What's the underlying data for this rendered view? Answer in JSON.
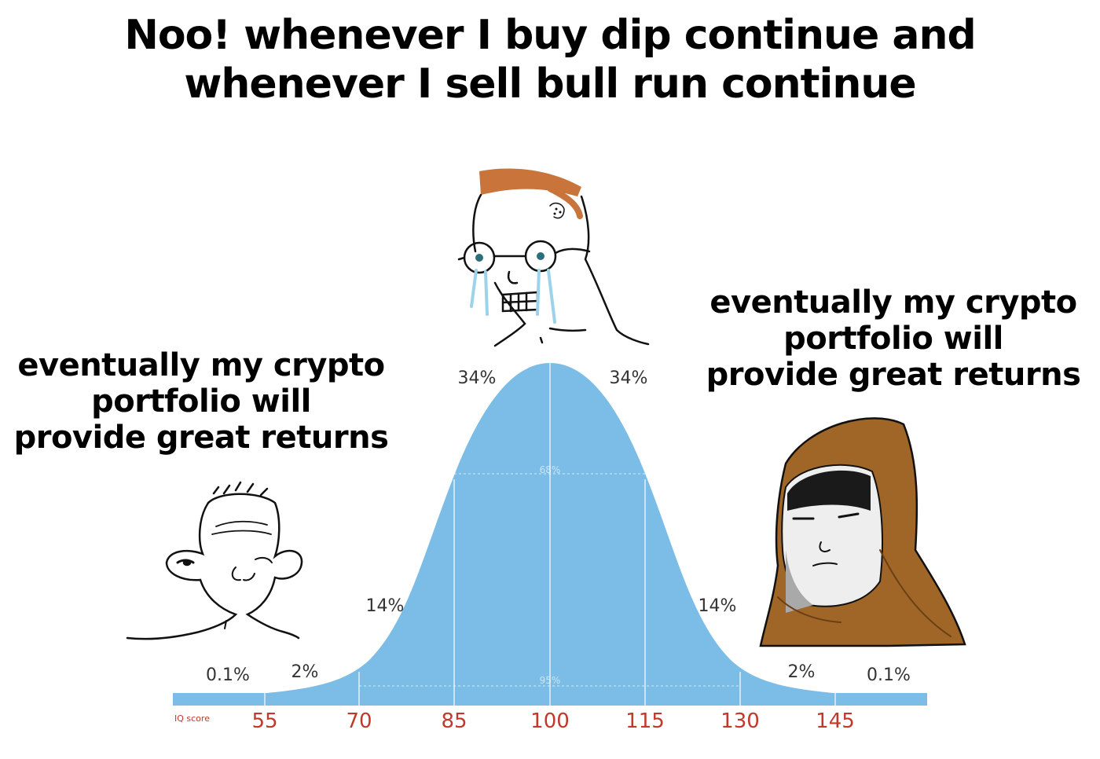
{
  "title": {
    "line1": "Noo! whenever I buy dip continue and",
    "line2": "whenever I sell bull run continue"
  },
  "left_caption": {
    "line1": "eventually my crypto",
    "line2": "portfolio will",
    "line3": "provide great returns"
  },
  "right_caption": {
    "line1": "eventually my crypto",
    "line2": "portfolio will",
    "line3": "provide great returns"
  },
  "chart": {
    "axis_label": "IQ score",
    "ticks": [
      "55",
      "70",
      "85",
      "100",
      "115",
      "130",
      "145"
    ],
    "percent_labels": {
      "far_left": "0.1%",
      "left_2": "2%",
      "left_14": "14%",
      "left_34": "34%",
      "right_34": "34%",
      "right_14": "14%",
      "right_2": "2%",
      "far_right": "0.1%",
      "inner_68": "68%",
      "inner_95": "95%"
    },
    "curve_color": "#7bbde6"
  },
  "characters": {
    "left": "wojak-left",
    "middle": "crying-wojak",
    "right": "hooded-monk"
  }
}
